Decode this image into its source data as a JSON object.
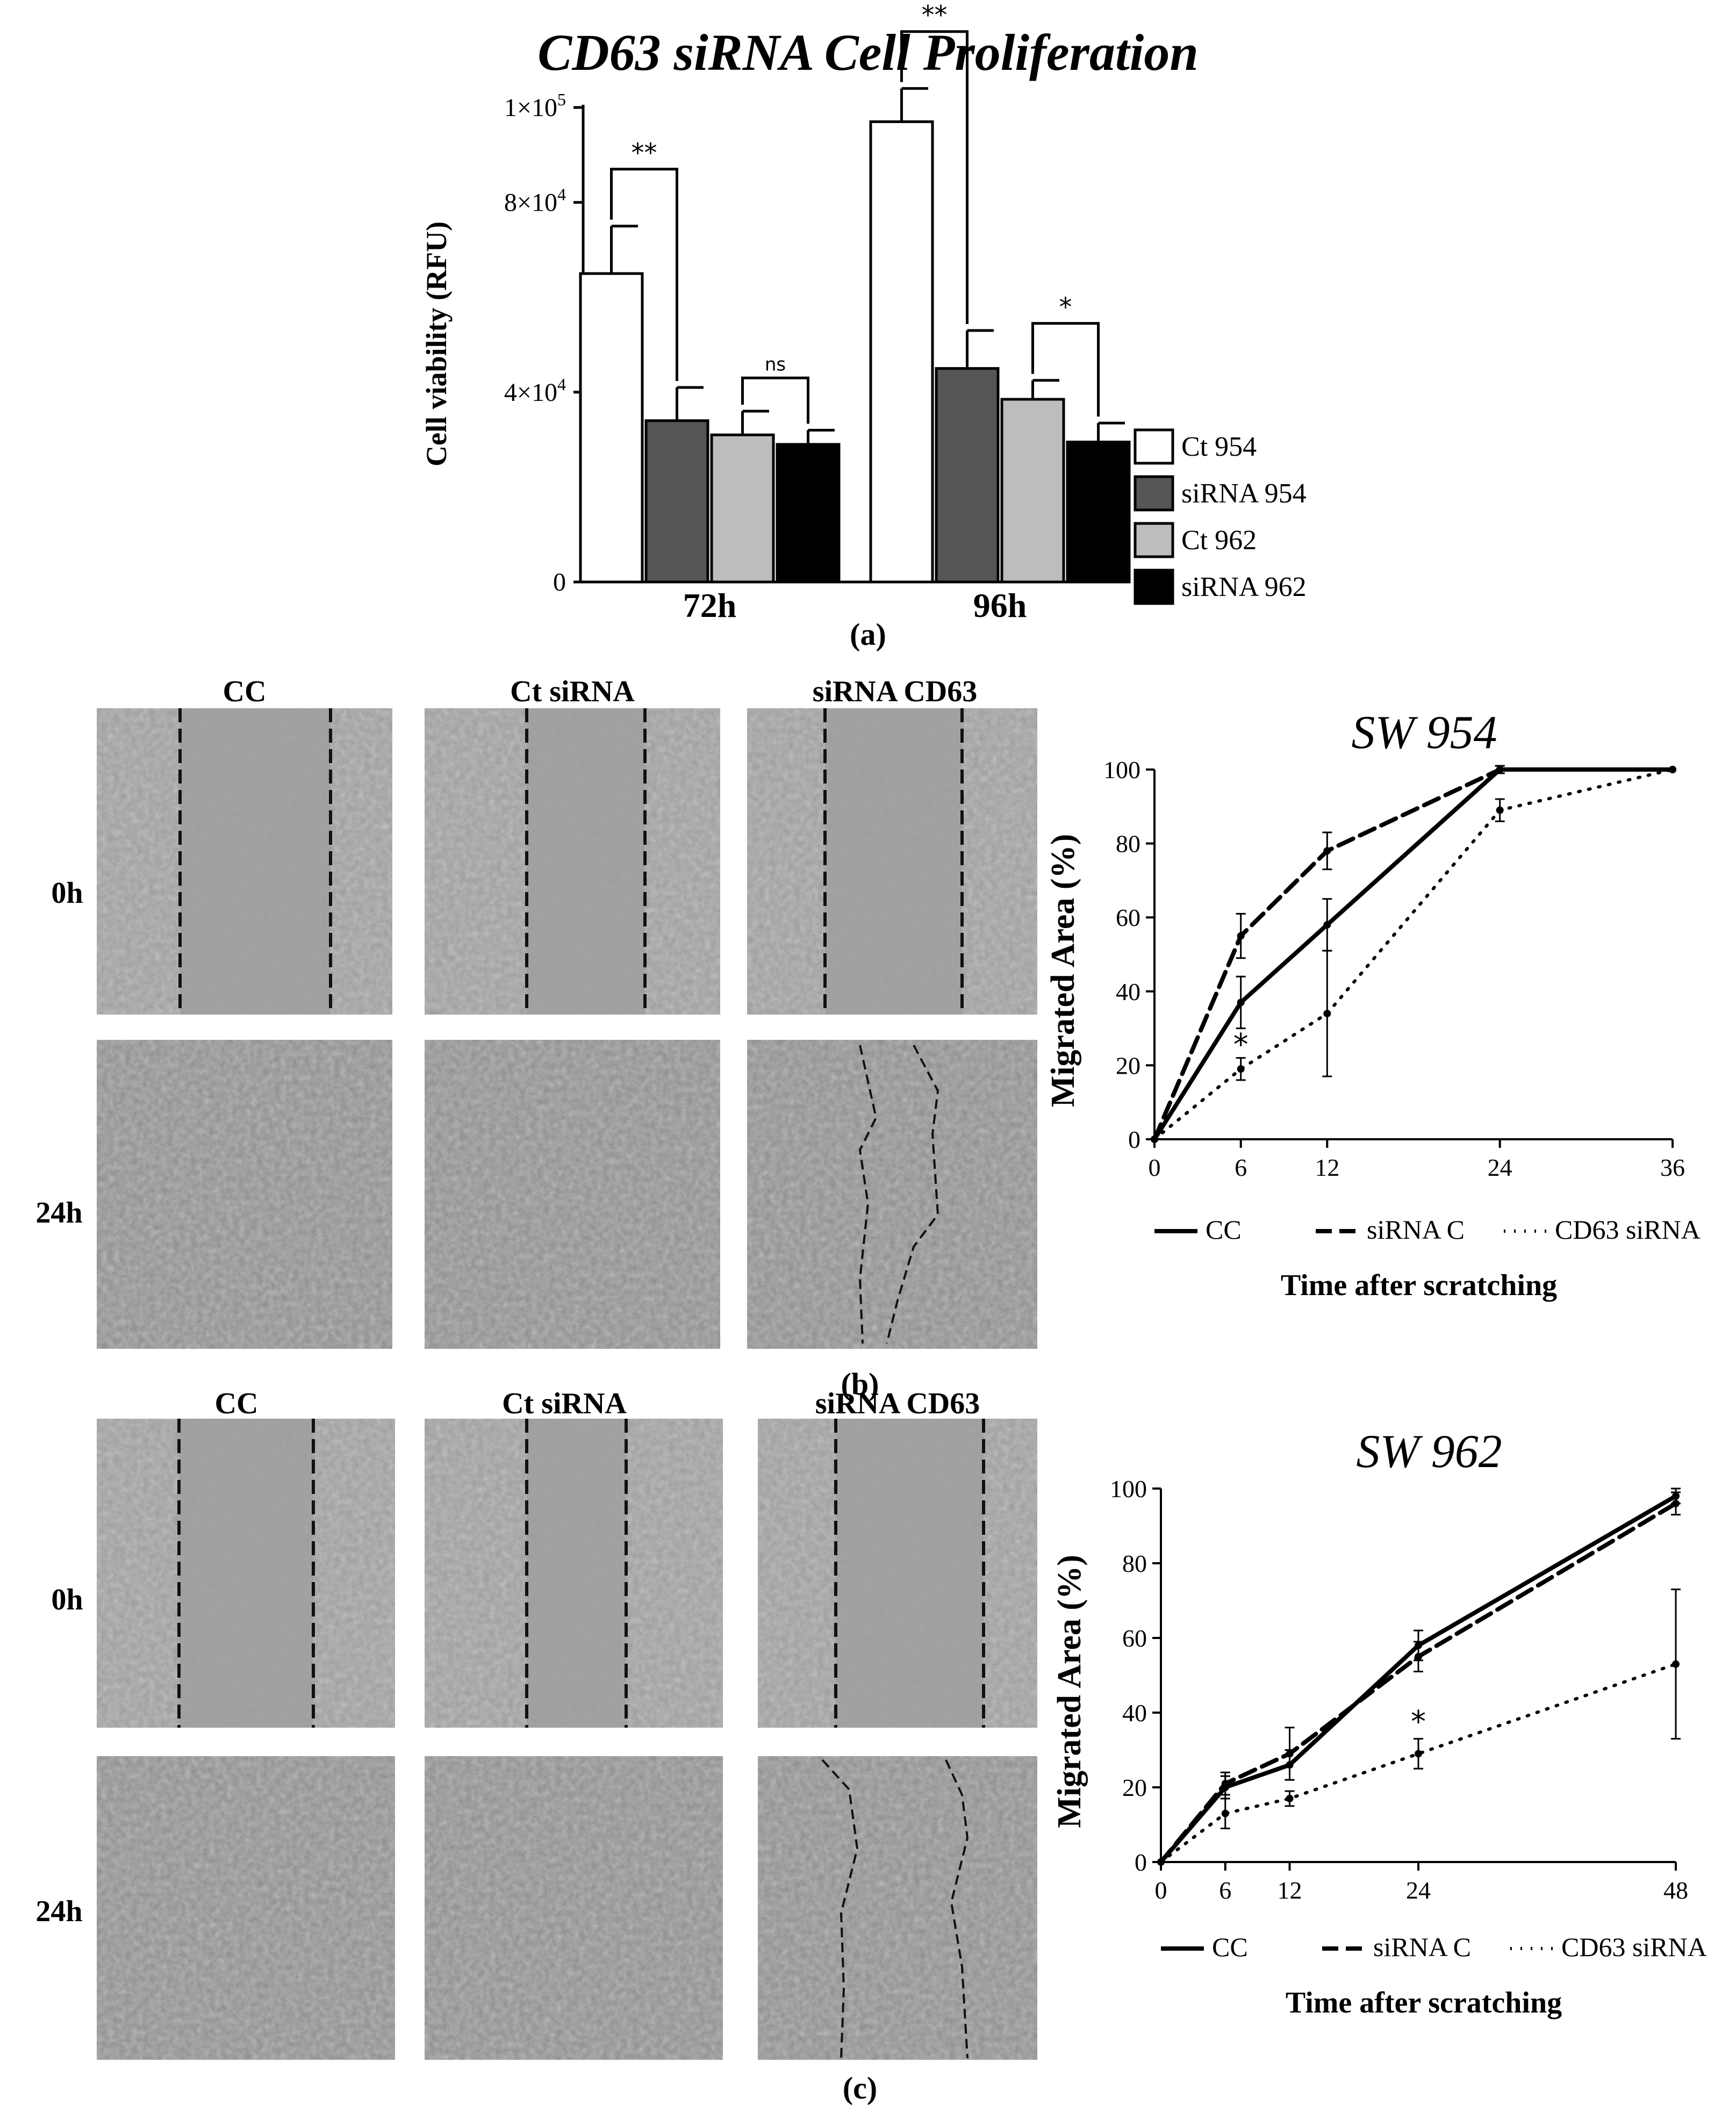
{
  "figure": {
    "panel_a_label": "(a)",
    "panel_b_label": "(b)",
    "panel_c_label": "(c)"
  },
  "micrographs": {
    "b": {
      "columns": [
        "CC",
        "Ct siRNA",
        "siRNA  CD63"
      ],
      "rows": [
        "0h",
        "24h"
      ]
    },
    "c": {
      "columns": [
        "CC",
        "Ct siRNA",
        "siRNA  CD63"
      ],
      "rows": [
        "0h",
        "24h"
      ]
    }
  },
  "chart_data": [
    {
      "id": "a",
      "type": "bar",
      "title": "CD63 siRNA Cell Proliferation",
      "xlabel": "",
      "ylabel": "Cell viability (RFU)",
      "ylim": [
        0,
        100000
      ],
      "yticks": [
        0,
        40000,
        80000,
        100000
      ],
      "ytick_labels": [
        {
          "base": "0",
          "exp": ""
        },
        {
          "base": "4×10",
          "exp": "4"
        },
        {
          "base": "8×10",
          "exp": "4"
        },
        {
          "base": "1×10",
          "exp": "5"
        }
      ],
      "categories": [
        "72h",
        "96h"
      ],
      "series": [
        {
          "name": "Ct 954",
          "color": "#ffffff",
          "values": [
            65000,
            97000
          ],
          "errors": [
            10000,
            7000
          ]
        },
        {
          "name": "siRNA 954",
          "color": "#555555",
          "values": [
            34000,
            45000
          ],
          "errors": [
            7000,
            8000
          ]
        },
        {
          "name": "Ct 962",
          "color": "#bdbdbd",
          "values": [
            31000,
            38500
          ],
          "errors": [
            5000,
            4000
          ]
        },
        {
          "name": "siRNA 962",
          "color": "#000000",
          "values": [
            29000,
            29500
          ],
          "errors": [
            3000,
            4000
          ]
        }
      ],
      "significance": [
        {
          "category": 0,
          "from": 0,
          "to": 1,
          "label": "**"
        },
        {
          "category": 0,
          "from": 2,
          "to": 3,
          "label": "ns"
        },
        {
          "category": 1,
          "from": 0,
          "to": 1,
          "label": "**"
        },
        {
          "category": 1,
          "from": 2,
          "to": 3,
          "label": "*"
        }
      ],
      "legend_position": "right"
    },
    {
      "id": "b",
      "type": "line",
      "title": "SW 954",
      "xlabel": "Time after scratching",
      "ylabel": "Migrated Area (%)",
      "ylim": [
        0,
        100
      ],
      "xlim": [
        0,
        36
      ],
      "xticks": [
        0,
        6,
        12,
        24,
        36
      ],
      "yticks": [
        0,
        20,
        40,
        60,
        80,
        100
      ],
      "series": [
        {
          "name": "CC",
          "style": "solid",
          "x": [
            0,
            6,
            12,
            24,
            36
          ],
          "y": [
            0,
            37,
            58,
            100,
            100
          ],
          "errors": [
            0,
            7,
            7,
            1,
            0
          ]
        },
        {
          "name": "siRNA C",
          "style": "dashed",
          "x": [
            0,
            6,
            12,
            24,
            36
          ],
          "y": [
            0,
            55,
            78,
            100,
            100
          ],
          "errors": [
            0,
            6,
            5,
            1,
            0
          ]
        },
        {
          "name": "CD63 siRNA",
          "style": "dotted",
          "x": [
            0,
            6,
            12,
            24,
            36
          ],
          "y": [
            0,
            19,
            34,
            89,
            100
          ],
          "errors": [
            0,
            3,
            17,
            3,
            0
          ]
        }
      ],
      "annotations": [
        {
          "x": 6,
          "y": 26,
          "label": "*"
        }
      ],
      "legend_position": "bottom"
    },
    {
      "id": "c",
      "type": "line",
      "title": "SW 962",
      "xlabel": "Time after scratching",
      "ylabel": "Migrated Area (%)",
      "ylim": [
        0,
        100
      ],
      "xlim": [
        0,
        48
      ],
      "xticks": [
        0,
        6,
        12,
        24,
        48
      ],
      "yticks": [
        0,
        20,
        40,
        60,
        80,
        100
      ],
      "series": [
        {
          "name": "CC",
          "style": "solid",
          "x": [
            0,
            6,
            12,
            24,
            48
          ],
          "y": [
            0,
            20,
            26,
            58,
            98
          ],
          "errors": [
            0,
            3,
            4,
            4,
            2
          ]
        },
        {
          "name": "siRNA C",
          "style": "dashed",
          "x": [
            0,
            6,
            12,
            24,
            48
          ],
          "y": [
            0,
            21,
            29,
            55,
            96
          ],
          "errors": [
            0,
            3,
            7,
            4,
            3
          ]
        },
        {
          "name": "CD63 siRNA",
          "style": "dotted",
          "x": [
            0,
            6,
            12,
            24,
            48
          ],
          "y": [
            0,
            13,
            17,
            29,
            53
          ],
          "errors": [
            0,
            4,
            2,
            4,
            20
          ]
        }
      ],
      "annotations": [
        {
          "x": 24,
          "y": 38,
          "label": "*"
        }
      ],
      "legend_position": "bottom",
      "legend_labels": [
        "CC",
        "siRNA C",
        "CD63 siRNA"
      ]
    }
  ]
}
